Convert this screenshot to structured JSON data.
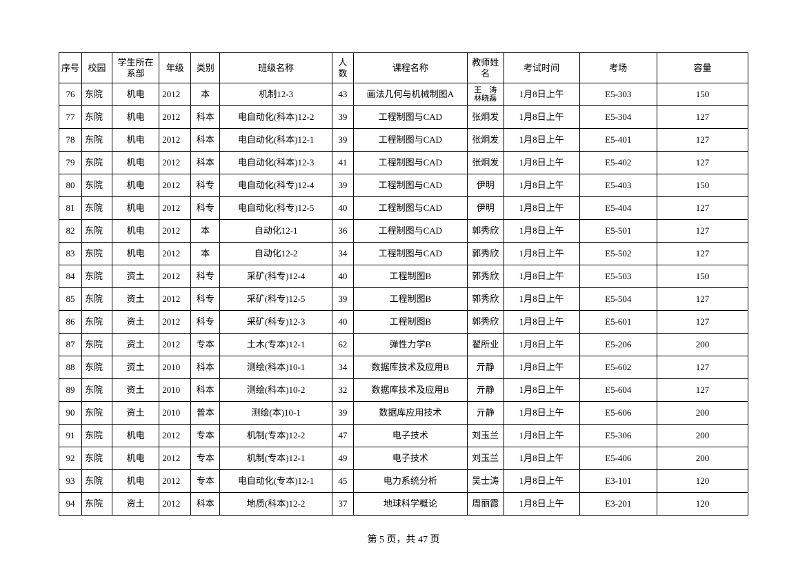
{
  "columns": [
    {
      "key": "seq",
      "label": "序号"
    },
    {
      "key": "campus",
      "label": "校园"
    },
    {
      "key": "dept",
      "label": "学生所在系部"
    },
    {
      "key": "year",
      "label": "年级"
    },
    {
      "key": "type",
      "label": "类别"
    },
    {
      "key": "class",
      "label": "班级名称"
    },
    {
      "key": "count",
      "label": "人数"
    },
    {
      "key": "course",
      "label": "课程名称"
    },
    {
      "key": "teacher",
      "label": "教师姓名"
    },
    {
      "key": "time",
      "label": "考试时间"
    },
    {
      "key": "room",
      "label": "考场"
    },
    {
      "key": "cap",
      "label": "容量"
    }
  ],
  "rows": [
    {
      "seq": "76",
      "campus": "东院",
      "dept": "机电",
      "year": "2012",
      "type": "本",
      "class": "机制12-3",
      "count": "43",
      "course": "画法几何与机械制图A",
      "teacher": "王　涛\n林晓磊",
      "time": "1月8日上午",
      "room": "E5-303",
      "cap": "150",
      "teacher_multi": true
    },
    {
      "seq": "77",
      "campus": "东院",
      "dept": "机电",
      "year": "2012",
      "type": "科本",
      "class": "电自动化(科本)12-2",
      "count": "39",
      "course": "工程制图与CAD",
      "teacher": "张炯发",
      "time": "1月8日上午",
      "room": "E5-304",
      "cap": "127"
    },
    {
      "seq": "78",
      "campus": "东院",
      "dept": "机电",
      "year": "2012",
      "type": "科本",
      "class": "电自动化(科本)12-1",
      "count": "39",
      "course": "工程制图与CAD",
      "teacher": "张炯发",
      "time": "1月8日上午",
      "room": "E5-401",
      "cap": "127"
    },
    {
      "seq": "79",
      "campus": "东院",
      "dept": "机电",
      "year": "2012",
      "type": "科本",
      "class": "电自动化(科本)12-3",
      "count": "41",
      "course": "工程制图与CAD",
      "teacher": "张炯发",
      "time": "1月8日上午",
      "room": "E5-402",
      "cap": "127"
    },
    {
      "seq": "80",
      "campus": "东院",
      "dept": "机电",
      "year": "2012",
      "type": "科专",
      "class": "电自动化(科专)12-4",
      "count": "39",
      "course": "工程制图与CAD",
      "teacher": "伊明",
      "time": "1月8日上午",
      "room": "E5-403",
      "cap": "150"
    },
    {
      "seq": "81",
      "campus": "东院",
      "dept": "机电",
      "year": "2012",
      "type": "科专",
      "class": "电自动化(科专)12-5",
      "count": "40",
      "course": "工程制图与CAD",
      "teacher": "伊明",
      "time": "1月8日上午",
      "room": "E5-404",
      "cap": "127"
    },
    {
      "seq": "82",
      "campus": "东院",
      "dept": "机电",
      "year": "2012",
      "type": "本",
      "class": "自动化12-1",
      "count": "36",
      "course": "工程制图与CAD",
      "teacher": "郭秀欣",
      "time": "1月8日上午",
      "room": "E5-501",
      "cap": "127"
    },
    {
      "seq": "83",
      "campus": "东院",
      "dept": "机电",
      "year": "2012",
      "type": "本",
      "class": "自动化12-2",
      "count": "34",
      "course": "工程制图与CAD",
      "teacher": "郭秀欣",
      "time": "1月8日上午",
      "room": "E5-502",
      "cap": "127"
    },
    {
      "seq": "84",
      "campus": "东院",
      "dept": "资土",
      "year": "2012",
      "type": "科专",
      "class": "采矿(科专)12-4",
      "count": "40",
      "course": "工程制图B",
      "teacher": "郭秀欣",
      "time": "1月8日上午",
      "room": "E5-503",
      "cap": "150"
    },
    {
      "seq": "85",
      "campus": "东院",
      "dept": "资土",
      "year": "2012",
      "type": "科专",
      "class": "采矿(科专)12-5",
      "count": "39",
      "course": "工程制图B",
      "teacher": "郭秀欣",
      "time": "1月8日上午",
      "room": "E5-504",
      "cap": "127"
    },
    {
      "seq": "86",
      "campus": "东院",
      "dept": "资土",
      "year": "2012",
      "type": "科专",
      "class": "采矿(科专)12-3",
      "count": "40",
      "course": "工程制图B",
      "teacher": "郭秀欣",
      "time": "1月8日上午",
      "room": "E5-601",
      "cap": "127"
    },
    {
      "seq": "87",
      "campus": "东院",
      "dept": "资土",
      "year": "2012",
      "type": "专本",
      "class": "土木(专本)12-1",
      "count": "62",
      "course": "弹性力学B",
      "teacher": "翟所业",
      "time": "1月8日上午",
      "room": "E5-206",
      "cap": "200"
    },
    {
      "seq": "88",
      "campus": "东院",
      "dept": "资土",
      "year": "2010",
      "type": "科本",
      "class": "测绘(科本)10-1",
      "count": "34",
      "course": "数据库技术及应用B",
      "teacher": "亓静",
      "time": "1月8日上午",
      "room": "E5-602",
      "cap": "127"
    },
    {
      "seq": "89",
      "campus": "东院",
      "dept": "资土",
      "year": "2010",
      "type": "科本",
      "class": "测绘(科本)10-2",
      "count": "32",
      "course": "数据库技术及应用B",
      "teacher": "亓静",
      "time": "1月8日上午",
      "room": "E5-604",
      "cap": "127"
    },
    {
      "seq": "90",
      "campus": "东院",
      "dept": "资土",
      "year": "2010",
      "type": "普本",
      "class": "测绘(本)10-1",
      "count": "39",
      "course": "数据库应用技术",
      "teacher": "亓静",
      "time": "1月8日上午",
      "room": "E5-606",
      "cap": "200"
    },
    {
      "seq": "91",
      "campus": "东院",
      "dept": "机电",
      "year": "2012",
      "type": "专本",
      "class": "机制(专本)12-2",
      "count": "47",
      "course": "电子技术",
      "teacher": "刘玉兰",
      "time": "1月8日上午",
      "room": "E5-306",
      "cap": "200"
    },
    {
      "seq": "92",
      "campus": "东院",
      "dept": "机电",
      "year": "2012",
      "type": "专本",
      "class": "机制(专本)12-1",
      "count": "49",
      "course": "电子技术",
      "teacher": "刘玉兰",
      "time": "1月8日上午",
      "room": "E5-406",
      "cap": "200"
    },
    {
      "seq": "93",
      "campus": "东院",
      "dept": "机电",
      "year": "2012",
      "type": "专本",
      "class": "电自动化(专本)12-1",
      "count": "45",
      "course": "电力系统分析",
      "teacher": "吴士涛",
      "time": "1月8日上午",
      "room": "E3-101",
      "cap": "120"
    },
    {
      "seq": "94",
      "campus": "东院",
      "dept": "资土",
      "year": "2012",
      "type": "科本",
      "class": "地质(科本)12-2",
      "count": "37",
      "course": "地球科学概论",
      "teacher": "周丽霞",
      "time": "1月8日上午",
      "room": "E3-201",
      "cap": "120"
    }
  ],
  "footer": {
    "current_page": "5",
    "total_pages": "47",
    "label_prefix": "第 ",
    "label_mid": " 页，共 ",
    "label_suffix": " 页"
  }
}
